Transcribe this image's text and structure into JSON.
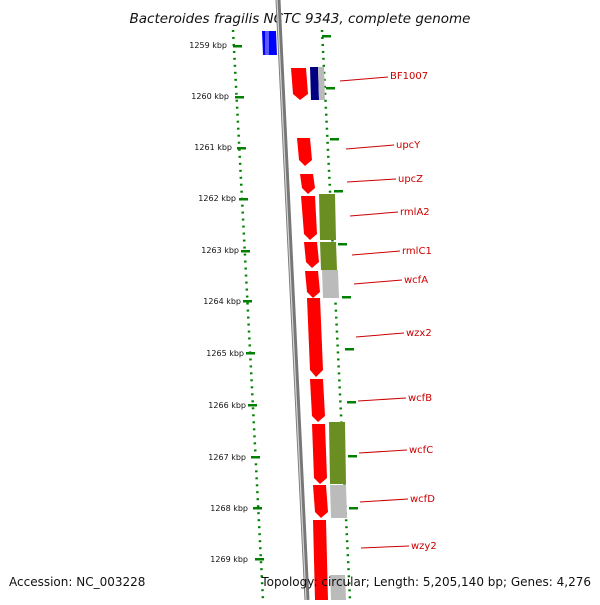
{
  "title": "Bacteroides fragilis NCTC 9343, complete genome",
  "footer": {
    "accession": "Accession: NC_003228",
    "topology": "Topology: circular; Length: 5,205,140 bp; Genes: 4,276"
  },
  "colors": {
    "gene_red": "#ff0000",
    "gene_blue": "#0000ff",
    "gene_navy": "#000080",
    "feature_olive": "#6b8e23",
    "feature_grey": "#bbbbbb",
    "backbone_grey": "#888888",
    "tick_green": "#008000",
    "label_red": "#cc0000"
  },
  "ticks": [
    "1259 kbp",
    "1260 kbp",
    "1261 kbp",
    "1262 kbp",
    "1263 kbp",
    "1264 kbp",
    "1265 kbp",
    "1266 kbp",
    "1267 kbp",
    "1268 kbp",
    "1269 kbp"
  ],
  "gene_labels": [
    "BF1007",
    "upcY",
    "upcZ",
    "rmlA2",
    "rmlC1",
    "wcfA",
    "wzx2",
    "wcfB",
    "wcfC",
    "wcfD",
    "wzy2"
  ]
}
